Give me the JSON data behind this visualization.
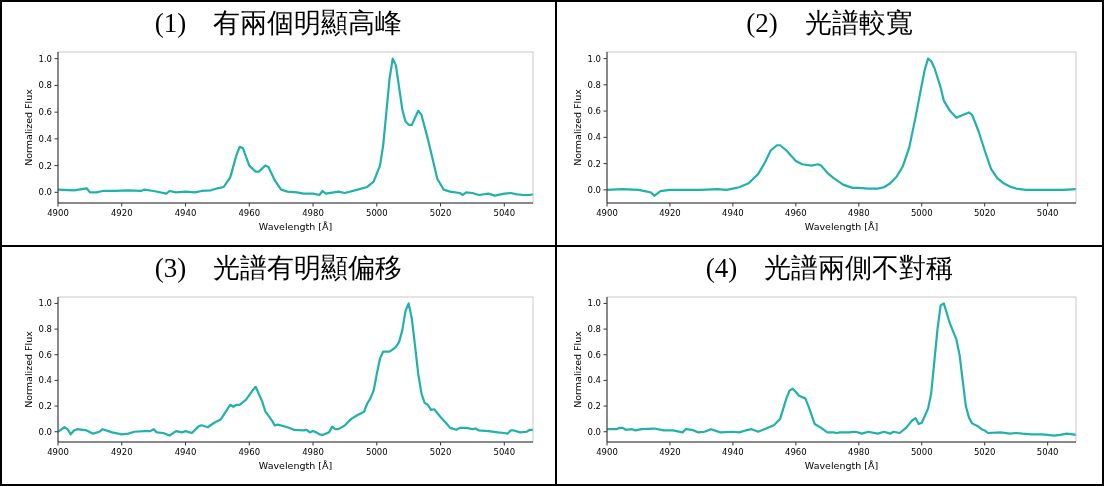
{
  "chart_data": [
    {
      "type": "line",
      "title": "(1)　有兩個明顯高峰",
      "xlabel": "Wavelength [Å]",
      "ylabel": "Normalized Flux",
      "xlim": [
        4900,
        5049
      ],
      "ylim": [
        -0.08,
        1.05
      ],
      "xticks": [
        4900,
        4920,
        4940,
        4960,
        4980,
        5000,
        5020,
        5040
      ],
      "yticks": [
        {
          "value": 0,
          "label": "0.0"
        },
        {
          "value": 0.2,
          "label": "0.2"
        },
        {
          "value": 0.4,
          "label": "0.4"
        },
        {
          "value": 0.6,
          "label": "0.6"
        },
        {
          "value": 0.8,
          "label": "0.8"
        },
        {
          "value": 1,
          "label": "1.0"
        }
      ],
      "x": [
        4900,
        4905,
        4909,
        4910,
        4912,
        4914,
        4918,
        4922,
        4926,
        4927,
        4930,
        4934,
        4935,
        4937,
        4940,
        4943,
        4945,
        4948,
        4950,
        4952,
        4954,
        4956,
        4957,
        4958,
        4960,
        4962,
        4963,
        4965,
        4966,
        4968,
        4970,
        4972,
        4975,
        4977,
        4980,
        4982,
        4983,
        4984,
        4988,
        4990,
        4994,
        4997,
        4999,
        5001,
        5002,
        5004,
        5005,
        5006,
        5008,
        5009,
        5010,
        5011,
        5013,
        5014,
        5016,
        5018,
        5019,
        5021,
        5023,
        5026,
        5027,
        5028,
        5030,
        5032,
        5035,
        5037,
        5040,
        5042,
        5044,
        5046,
        5048,
        5049
      ],
      "series": [
        {
          "color": "#20b2aa",
          "values": [
            0.02,
            0.015,
            0.03,
            0.0,
            0.0,
            0.01,
            0.01,
            0.015,
            0.01,
            0.02,
            0.01,
            -0.01,
            0.01,
            0.0,
            0.005,
            0.0,
            0.01,
            0.015,
            0.03,
            0.04,
            0.11,
            0.28,
            0.34,
            0.33,
            0.2,
            0.155,
            0.155,
            0.2,
            0.19,
            0.09,
            0.02,
            0.005,
            0.0,
            -0.01,
            -0.01,
            -0.02,
            0.01,
            -0.01,
            0.005,
            -0.005,
            0.02,
            0.04,
            0.08,
            0.2,
            0.35,
            0.85,
            1.0,
            0.95,
            0.62,
            0.53,
            0.505,
            0.505,
            0.61,
            0.58,
            0.4,
            0.2,
            0.1,
            0.02,
            0.005,
            -0.005,
            -0.02,
            0.0,
            -0.005,
            -0.02,
            -0.01,
            -0.025,
            -0.01,
            -0.005,
            -0.015,
            -0.02,
            -0.02,
            -0.015
          ]
        }
      ]
    },
    {
      "type": "line",
      "title": "(2)　光譜較寬",
      "xlabel": "Wavelength [Å]",
      "ylabel": "Normalized Flux",
      "xlim": [
        4900,
        5049
      ],
      "ylim": [
        -0.1,
        1.05
      ],
      "xticks": [
        4900,
        4920,
        4940,
        4960,
        4980,
        5000,
        5020,
        5040
      ],
      "yticks": [
        {
          "value": 0,
          "label": "0.0"
        },
        {
          "value": 0.2,
          "label": "0.2"
        },
        {
          "value": 0.4,
          "label": "0.4"
        },
        {
          "value": 0.6,
          "label": "0.6"
        },
        {
          "value": 0.8,
          "label": "0.8"
        },
        {
          "value": 1,
          "label": "1.0"
        }
      ],
      "x": [
        4900,
        4905,
        4910,
        4912,
        4914,
        4915,
        4917,
        4920,
        4925,
        4930,
        4935,
        4938,
        4940,
        4942,
        4945,
        4948,
        4950,
        4952,
        4954,
        4955,
        4957,
        4960,
        4962,
        4965,
        4967,
        4968,
        4970,
        4972,
        4975,
        4978,
        4980,
        4983,
        4986,
        4988,
        4990,
        4992,
        4994,
        4996,
        4998,
        5000,
        5001,
        5002,
        5003,
        5004,
        5006,
        5007,
        5009,
        5011,
        5013,
        5015,
        5016,
        5018,
        5020,
        5022,
        5024,
        5026,
        5028,
        5030,
        5033,
        5040,
        5045,
        5049
      ],
      "series": [
        {
          "color": "#20b2aa",
          "values": [
            0.0,
            0.005,
            0.0,
            -0.01,
            -0.02,
            -0.045,
            -0.01,
            0.0,
            0.0,
            0.0,
            0.005,
            0.0,
            0.01,
            0.02,
            0.05,
            0.12,
            0.2,
            0.3,
            0.34,
            0.34,
            0.3,
            0.22,
            0.195,
            0.185,
            0.195,
            0.185,
            0.13,
            0.09,
            0.04,
            0.015,
            0.015,
            0.01,
            0.01,
            0.02,
            0.05,
            0.1,
            0.18,
            0.32,
            0.55,
            0.8,
            0.92,
            1.0,
            0.98,
            0.93,
            0.78,
            0.68,
            0.6,
            0.55,
            0.57,
            0.59,
            0.57,
            0.45,
            0.3,
            0.16,
            0.09,
            0.05,
            0.025,
            0.01,
            0.0,
            0.0,
            0.0,
            0.005
          ]
        }
      ]
    },
    {
      "type": "line",
      "title": "(3)　光譜有明顯偏移",
      "xlabel": "Wavelength [Å]",
      "ylabel": "Normalized Flux",
      "xlim": [
        4900,
        5049
      ],
      "ylim": [
        -0.08,
        1.05
      ],
      "xticks": [
        4900,
        4920,
        4940,
        4960,
        4980,
        5000,
        5020,
        5040
      ],
      "yticks": [
        {
          "value": 0,
          "label": "0.0"
        },
        {
          "value": 0.2,
          "label": "0.2"
        },
        {
          "value": 0.4,
          "label": "0.4"
        },
        {
          "value": 0.6,
          "label": "0.6"
        },
        {
          "value": 0.8,
          "label": "0.8"
        },
        {
          "value": 1,
          "label": "1.0"
        }
      ],
      "x": [
        4900,
        4902,
        4903,
        4904,
        4905,
        4906,
        4909,
        4911,
        4913,
        4914,
        4917,
        4920,
        4922,
        4924,
        4927,
        4929,
        4930,
        4931,
        4933,
        4935,
        4937,
        4939,
        4940,
        4942,
        4944,
        4945,
        4947,
        4949,
        4951,
        4953,
        4954,
        4955,
        4956,
        4957,
        4959,
        4961,
        4962,
        4964,
        4965,
        4967,
        4968,
        4969,
        4972,
        4974,
        4977,
        4978,
        4979,
        4980,
        4981,
        4982,
        4983,
        4985,
        4986,
        4987,
        4988,
        4990,
        4992,
        4994,
        4996,
        4997,
        4998,
        4999,
        5000,
        5001,
        5002,
        5004,
        5006,
        5007,
        5008,
        5009,
        5010,
        5011,
        5012,
        5013,
        5014,
        5015,
        5016,
        5017,
        5018,
        5020,
        5022,
        5023,
        5025,
        5026,
        5028,
        5030,
        5031,
        5032,
        5035,
        5038,
        5040,
        5041,
        5042,
        5043,
        5045,
        5047,
        5048,
        5049
      ],
      "series": [
        {
          "color": "#20b2aa",
          "values": [
            0.0,
            0.035,
            0.02,
            -0.02,
            0.01,
            0.02,
            0.01,
            -0.015,
            0.0,
            0.02,
            -0.005,
            -0.02,
            -0.015,
            0.0,
            0.005,
            0.005,
            0.02,
            -0.005,
            -0.01,
            -0.03,
            0.005,
            -0.005,
            0.005,
            -0.01,
            0.04,
            0.05,
            0.035,
            0.07,
            0.095,
            0.17,
            0.21,
            0.195,
            0.21,
            0.21,
            0.25,
            0.32,
            0.35,
            0.24,
            0.16,
            0.09,
            0.05,
            0.055,
            0.035,
            0.015,
            0.01,
            0.015,
            -0.005,
            0.005,
            -0.005,
            -0.02,
            -0.025,
            -0.005,
            0.04,
            0.02,
            0.02,
            0.05,
            0.1,
            0.13,
            0.155,
            0.22,
            0.26,
            0.32,
            0.45,
            0.57,
            0.625,
            0.625,
            0.66,
            0.7,
            0.79,
            0.94,
            1.0,
            0.88,
            0.67,
            0.45,
            0.3,
            0.225,
            0.21,
            0.17,
            0.175,
            0.115,
            0.06,
            0.03,
            0.015,
            0.03,
            0.03,
            0.02,
            0.025,
            0.01,
            0.005,
            -0.005,
            -0.01,
            -0.015,
            0.01,
            0.01,
            -0.005,
            0.0,
            0.015,
            0.015
          ]
        }
      ]
    },
    {
      "type": "line",
      "title": "(4)　光譜兩側不對稱",
      "xlabel": "Wavelength [Å]",
      "ylabel": "Normalized Flux",
      "xlim": [
        4900,
        5049
      ],
      "ylim": [
        -0.08,
        1.05
      ],
      "xticks": [
        4900,
        4920,
        4940,
        4960,
        4980,
        5000,
        5020,
        5040
      ],
      "yticks": [
        {
          "value": 0,
          "label": "0.0"
        },
        {
          "value": 0.2,
          "label": "0.2"
        },
        {
          "value": 0.4,
          "label": "0.4"
        },
        {
          "value": 0.6,
          "label": "0.6"
        },
        {
          "value": 0.8,
          "label": "0.8"
        },
        {
          "value": 1,
          "label": "1.0"
        }
      ],
      "x": [
        4900,
        4903,
        4904,
        4905,
        4906,
        4908,
        4909,
        4911,
        4915,
        4918,
        4921,
        4924,
        4925,
        4927,
        4929,
        4931,
        4933,
        4936,
        4940,
        4942,
        4944,
        4946,
        4948,
        4950,
        4953,
        4955,
        4957,
        4958,
        4959,
        4960,
        4961,
        4963,
        4964,
        4966,
        4968,
        4970,
        4972,
        4973,
        4974,
        4977,
        4979,
        4981,
        4983,
        4986,
        4988,
        4990,
        4991,
        4993,
        4995,
        4997,
        4998,
        4999,
        5000,
        5002,
        5003,
        5004,
        5005,
        5006,
        5007,
        5009,
        5011,
        5012,
        5013,
        5014,
        5015,
        5016,
        5018,
        5019,
        5020,
        5021,
        5025,
        5028,
        5030,
        5032,
        5035,
        5038,
        5040,
        5042,
        5044,
        5046,
        5048,
        5049
      ],
      "series": [
        {
          "color": "#20b2aa",
          "values": [
            0.02,
            0.02,
            0.03,
            0.03,
            0.015,
            0.02,
            0.01,
            0.02,
            0.025,
            0.01,
            0.01,
            -0.005,
            0.02,
            0.015,
            -0.005,
            0.0,
            0.02,
            -0.005,
            0.0,
            -0.005,
            0.01,
            0.02,
            0.0,
            0.02,
            0.05,
            0.1,
            0.26,
            0.32,
            0.335,
            0.31,
            0.28,
            0.26,
            0.2,
            0.06,
            0.03,
            -0.005,
            -0.005,
            -0.01,
            -0.005,
            -0.005,
            0.0,
            -0.015,
            0.0,
            -0.015,
            0.0,
            -0.015,
            0.0,
            -0.01,
            0.03,
            0.09,
            0.105,
            0.06,
            0.07,
            0.18,
            0.3,
            0.55,
            0.8,
            0.985,
            1.0,
            0.84,
            0.72,
            0.6,
            0.4,
            0.2,
            0.11,
            0.065,
            0.04,
            0.02,
            0.01,
            -0.01,
            -0.005,
            -0.015,
            -0.01,
            -0.015,
            -0.02,
            -0.02,
            -0.025,
            -0.03,
            -0.025,
            -0.015,
            -0.02,
            -0.025
          ]
        }
      ]
    }
  ]
}
